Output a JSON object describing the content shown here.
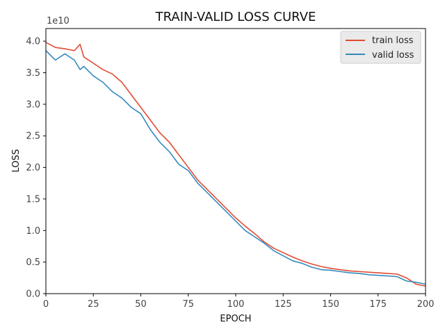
{
  "chart_data": {
    "type": "line",
    "title": "TRAIN-VALID LOSS CURVE",
    "xlabel": "EPOCH",
    "ylabel": "LOSS",
    "y_multiplier_label": "1e10",
    "xlim": [
      0,
      200
    ],
    "ylim": [
      0,
      4.2
    ],
    "x_ticks": [
      0,
      25,
      50,
      75,
      100,
      125,
      150,
      175,
      200
    ],
    "x_tick_labels": [
      "0",
      "25",
      "50",
      "75",
      "100",
      "125",
      "150",
      "175",
      "200"
    ],
    "y_ticks": [
      0,
      0.5,
      1.0,
      1.5,
      2.0,
      2.5,
      3.0,
      3.5,
      4.0
    ],
    "y_tick_labels": [
      "0.0",
      "0.5",
      "1.0",
      "1.5",
      "2.0",
      "2.5",
      "3.0",
      "3.5",
      "4.0"
    ],
    "grid": false,
    "legend_position": "top-right",
    "x": [
      0,
      5,
      10,
      15,
      18,
      20,
      25,
      30,
      35,
      40,
      45,
      50,
      55,
      60,
      65,
      70,
      75,
      80,
      85,
      90,
      95,
      100,
      105,
      110,
      115,
      120,
      125,
      130,
      135,
      140,
      145,
      150,
      155,
      160,
      165,
      170,
      175,
      180,
      185,
      190,
      195,
      200
    ],
    "series": [
      {
        "name": "train loss",
        "color": "#e24a33",
        "values": [
          3.98,
          3.9,
          3.88,
          3.85,
          3.95,
          3.75,
          3.65,
          3.55,
          3.48,
          3.35,
          3.15,
          2.95,
          2.75,
          2.55,
          2.4,
          2.2,
          2.0,
          1.8,
          1.65,
          1.5,
          1.35,
          1.2,
          1.07,
          0.95,
          0.82,
          0.72,
          0.65,
          0.58,
          0.52,
          0.47,
          0.43,
          0.4,
          0.38,
          0.36,
          0.35,
          0.34,
          0.33,
          0.32,
          0.31,
          0.25,
          0.15,
          0.12
        ]
      },
      {
        "name": "valid loss",
        "color": "#348abd",
        "values": [
          3.85,
          3.7,
          3.8,
          3.7,
          3.55,
          3.6,
          3.45,
          3.35,
          3.2,
          3.1,
          2.95,
          2.85,
          2.6,
          2.4,
          2.25,
          2.05,
          1.95,
          1.75,
          1.6,
          1.45,
          1.3,
          1.15,
          1.0,
          0.9,
          0.8,
          0.68,
          0.6,
          0.52,
          0.48,
          0.42,
          0.38,
          0.37,
          0.35,
          0.33,
          0.32,
          0.3,
          0.29,
          0.28,
          0.27,
          0.2,
          0.18,
          0.15
        ]
      }
    ]
  }
}
